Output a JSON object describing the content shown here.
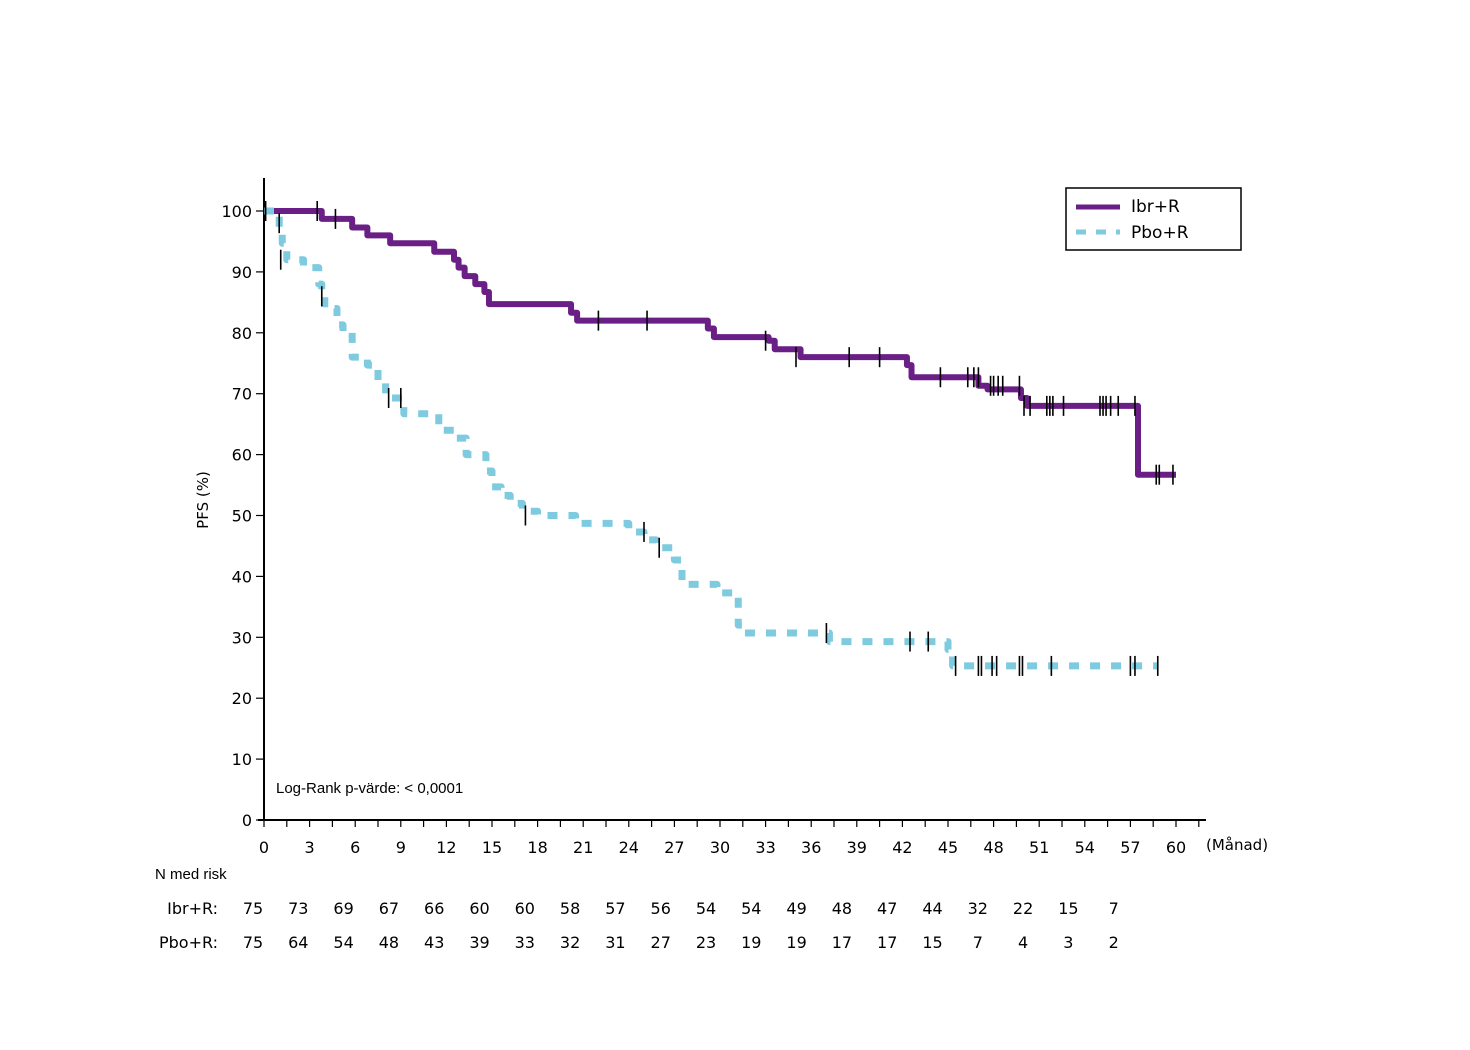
{
  "chart_data": {
    "type": "line",
    "subtype": "kaplan-meier",
    "title": "",
    "xlabel": "(Månad)",
    "ylabel": "PFS (%)",
    "xlim": [
      0,
      60
    ],
    "ylim": [
      0,
      100
    ],
    "x_ticks": [
      0,
      3,
      6,
      9,
      12,
      15,
      18,
      21,
      24,
      27,
      30,
      33,
      36,
      39,
      42,
      45,
      48,
      51,
      54,
      57,
      60
    ],
    "x_minor_step": 1.5,
    "y_ticks": [
      0,
      10,
      20,
      30,
      40,
      50,
      60,
      70,
      80,
      90,
      100
    ],
    "grid": false,
    "legend_position": "top-right",
    "annotation": "Log-Rank p-värde: < 0,0001",
    "series": [
      {
        "name": "Ibr+R",
        "color": "#6a1f86",
        "style": "solid",
        "steps": [
          [
            0,
            100
          ],
          [
            3.8,
            98.7
          ],
          [
            5.8,
            97.3
          ],
          [
            6.8,
            96.0
          ],
          [
            8.3,
            94.7
          ],
          [
            11.2,
            93.3
          ],
          [
            12.5,
            92.0
          ],
          [
            12.8,
            90.7
          ],
          [
            13.2,
            89.3
          ],
          [
            13.9,
            88.0
          ],
          [
            14.5,
            86.7
          ],
          [
            14.8,
            84.7
          ],
          [
            20.2,
            83.3
          ],
          [
            20.6,
            82.0
          ],
          [
            29.2,
            80.7
          ],
          [
            29.6,
            79.3
          ],
          [
            33.2,
            78.7
          ],
          [
            33.6,
            77.3
          ],
          [
            35.3,
            76.0
          ],
          [
            42.3,
            74.7
          ],
          [
            42.6,
            72.7
          ],
          [
            47.0,
            71.3
          ],
          [
            47.6,
            70.7
          ],
          [
            49.8,
            69.3
          ],
          [
            50.2,
            68.0
          ],
          [
            57.5,
            56.7
          ]
        ],
        "x_end": 60,
        "censored": [
          [
            0.1,
            100
          ],
          [
            3.5,
            100
          ],
          [
            4.7,
            98.7
          ],
          [
            22.0,
            82.0
          ],
          [
            25.2,
            82.0
          ],
          [
            33.0,
            78.7
          ],
          [
            35.0,
            76.0
          ],
          [
            38.5,
            76.0
          ],
          [
            40.5,
            76.0
          ],
          [
            44.5,
            72.7
          ],
          [
            46.3,
            72.7
          ],
          [
            46.7,
            72.7
          ],
          [
            47.0,
            72.7
          ],
          [
            47.8,
            71.3
          ],
          [
            48.0,
            71.3
          ],
          [
            48.3,
            71.3
          ],
          [
            48.6,
            71.3
          ],
          [
            49.7,
            71.3
          ],
          [
            50.0,
            68.0
          ],
          [
            50.4,
            68.0
          ],
          [
            51.5,
            68.0
          ],
          [
            51.7,
            68.0
          ],
          [
            51.9,
            68.0
          ],
          [
            52.6,
            68.0
          ],
          [
            55.0,
            68.0
          ],
          [
            55.2,
            68.0
          ],
          [
            55.4,
            68.0
          ],
          [
            55.7,
            68.0
          ],
          [
            56.2,
            68.0
          ],
          [
            57.3,
            68.0
          ],
          [
            58.7,
            56.7
          ],
          [
            58.9,
            56.7
          ],
          [
            59.8,
            56.7
          ]
        ]
      },
      {
        "name": "Pbo+R",
        "color": "#7ecbdf",
        "style": "dashed",
        "steps": [
          [
            0,
            100
          ],
          [
            1.0,
            97.3
          ],
          [
            1.2,
            94.7
          ],
          [
            1.5,
            92.0
          ],
          [
            2.6,
            90.7
          ],
          [
            3.6,
            88.0
          ],
          [
            3.8,
            86.7
          ],
          [
            4.0,
            84.0
          ],
          [
            4.8,
            81.3
          ],
          [
            5.2,
            80.0
          ],
          [
            5.8,
            76.0
          ],
          [
            6.8,
            74.7
          ],
          [
            7.5,
            72.0
          ],
          [
            8.0,
            69.3
          ],
          [
            9.2,
            66.7
          ],
          [
            11.5,
            64.0
          ],
          [
            12.5,
            62.7
          ],
          [
            13.3,
            60.0
          ],
          [
            14.6,
            57.3
          ],
          [
            15.0,
            54.7
          ],
          [
            15.6,
            53.3
          ],
          [
            16.2,
            52.0
          ],
          [
            17.0,
            50.7
          ],
          [
            18.0,
            50.0
          ],
          [
            20.5,
            48.7
          ],
          [
            24.0,
            47.3
          ],
          [
            25.0,
            46.0
          ],
          [
            25.8,
            44.7
          ],
          [
            27.0,
            42.7
          ],
          [
            27.5,
            38.7
          ],
          [
            29.8,
            37.3
          ],
          [
            31.2,
            32.0
          ],
          [
            31.5,
            30.7
          ],
          [
            37.2,
            29.3
          ],
          [
            45.0,
            28.0
          ],
          [
            45.3,
            25.3
          ]
        ],
        "x_end": 58.8,
        "censored": [
          [
            0.1,
            100
          ],
          [
            1.0,
            98.0
          ],
          [
            1.1,
            92.0
          ],
          [
            3.8,
            86.0
          ],
          [
            8.2,
            69.3
          ],
          [
            9.0,
            69.3
          ],
          [
            17.2,
            50.0
          ],
          [
            25.0,
            47.3
          ],
          [
            26.0,
            44.7
          ],
          [
            37.0,
            30.7
          ],
          [
            42.5,
            29.3
          ],
          [
            43.7,
            29.3
          ],
          [
            45.5,
            25.3
          ],
          [
            47.0,
            25.3
          ],
          [
            47.2,
            25.3
          ],
          [
            47.9,
            25.3
          ],
          [
            48.2,
            25.3
          ],
          [
            49.7,
            25.3
          ],
          [
            49.9,
            25.3
          ],
          [
            51.8,
            25.3
          ],
          [
            57.0,
            25.3
          ],
          [
            57.3,
            25.3
          ],
          [
            58.8,
            25.3
          ]
        ]
      }
    ],
    "risk_table": {
      "title": "N med risk",
      "times": [
        0,
        3,
        6,
        9,
        12,
        15,
        18,
        21,
        24,
        27,
        30,
        33,
        36,
        39,
        42,
        45,
        48,
        51,
        54,
        57
      ],
      "rows": [
        {
          "label": "Ibr+R:",
          "values": [
            75,
            73,
            69,
            67,
            66,
            60,
            60,
            58,
            57,
            56,
            54,
            54,
            49,
            48,
            47,
            44,
            32,
            22,
            15,
            7
          ]
        },
        {
          "label": "Pbo+R:",
          "values": [
            75,
            64,
            54,
            48,
            43,
            39,
            33,
            32,
            31,
            27,
            23,
            19,
            19,
            17,
            17,
            15,
            7,
            4,
            3,
            2
          ]
        }
      ]
    }
  }
}
